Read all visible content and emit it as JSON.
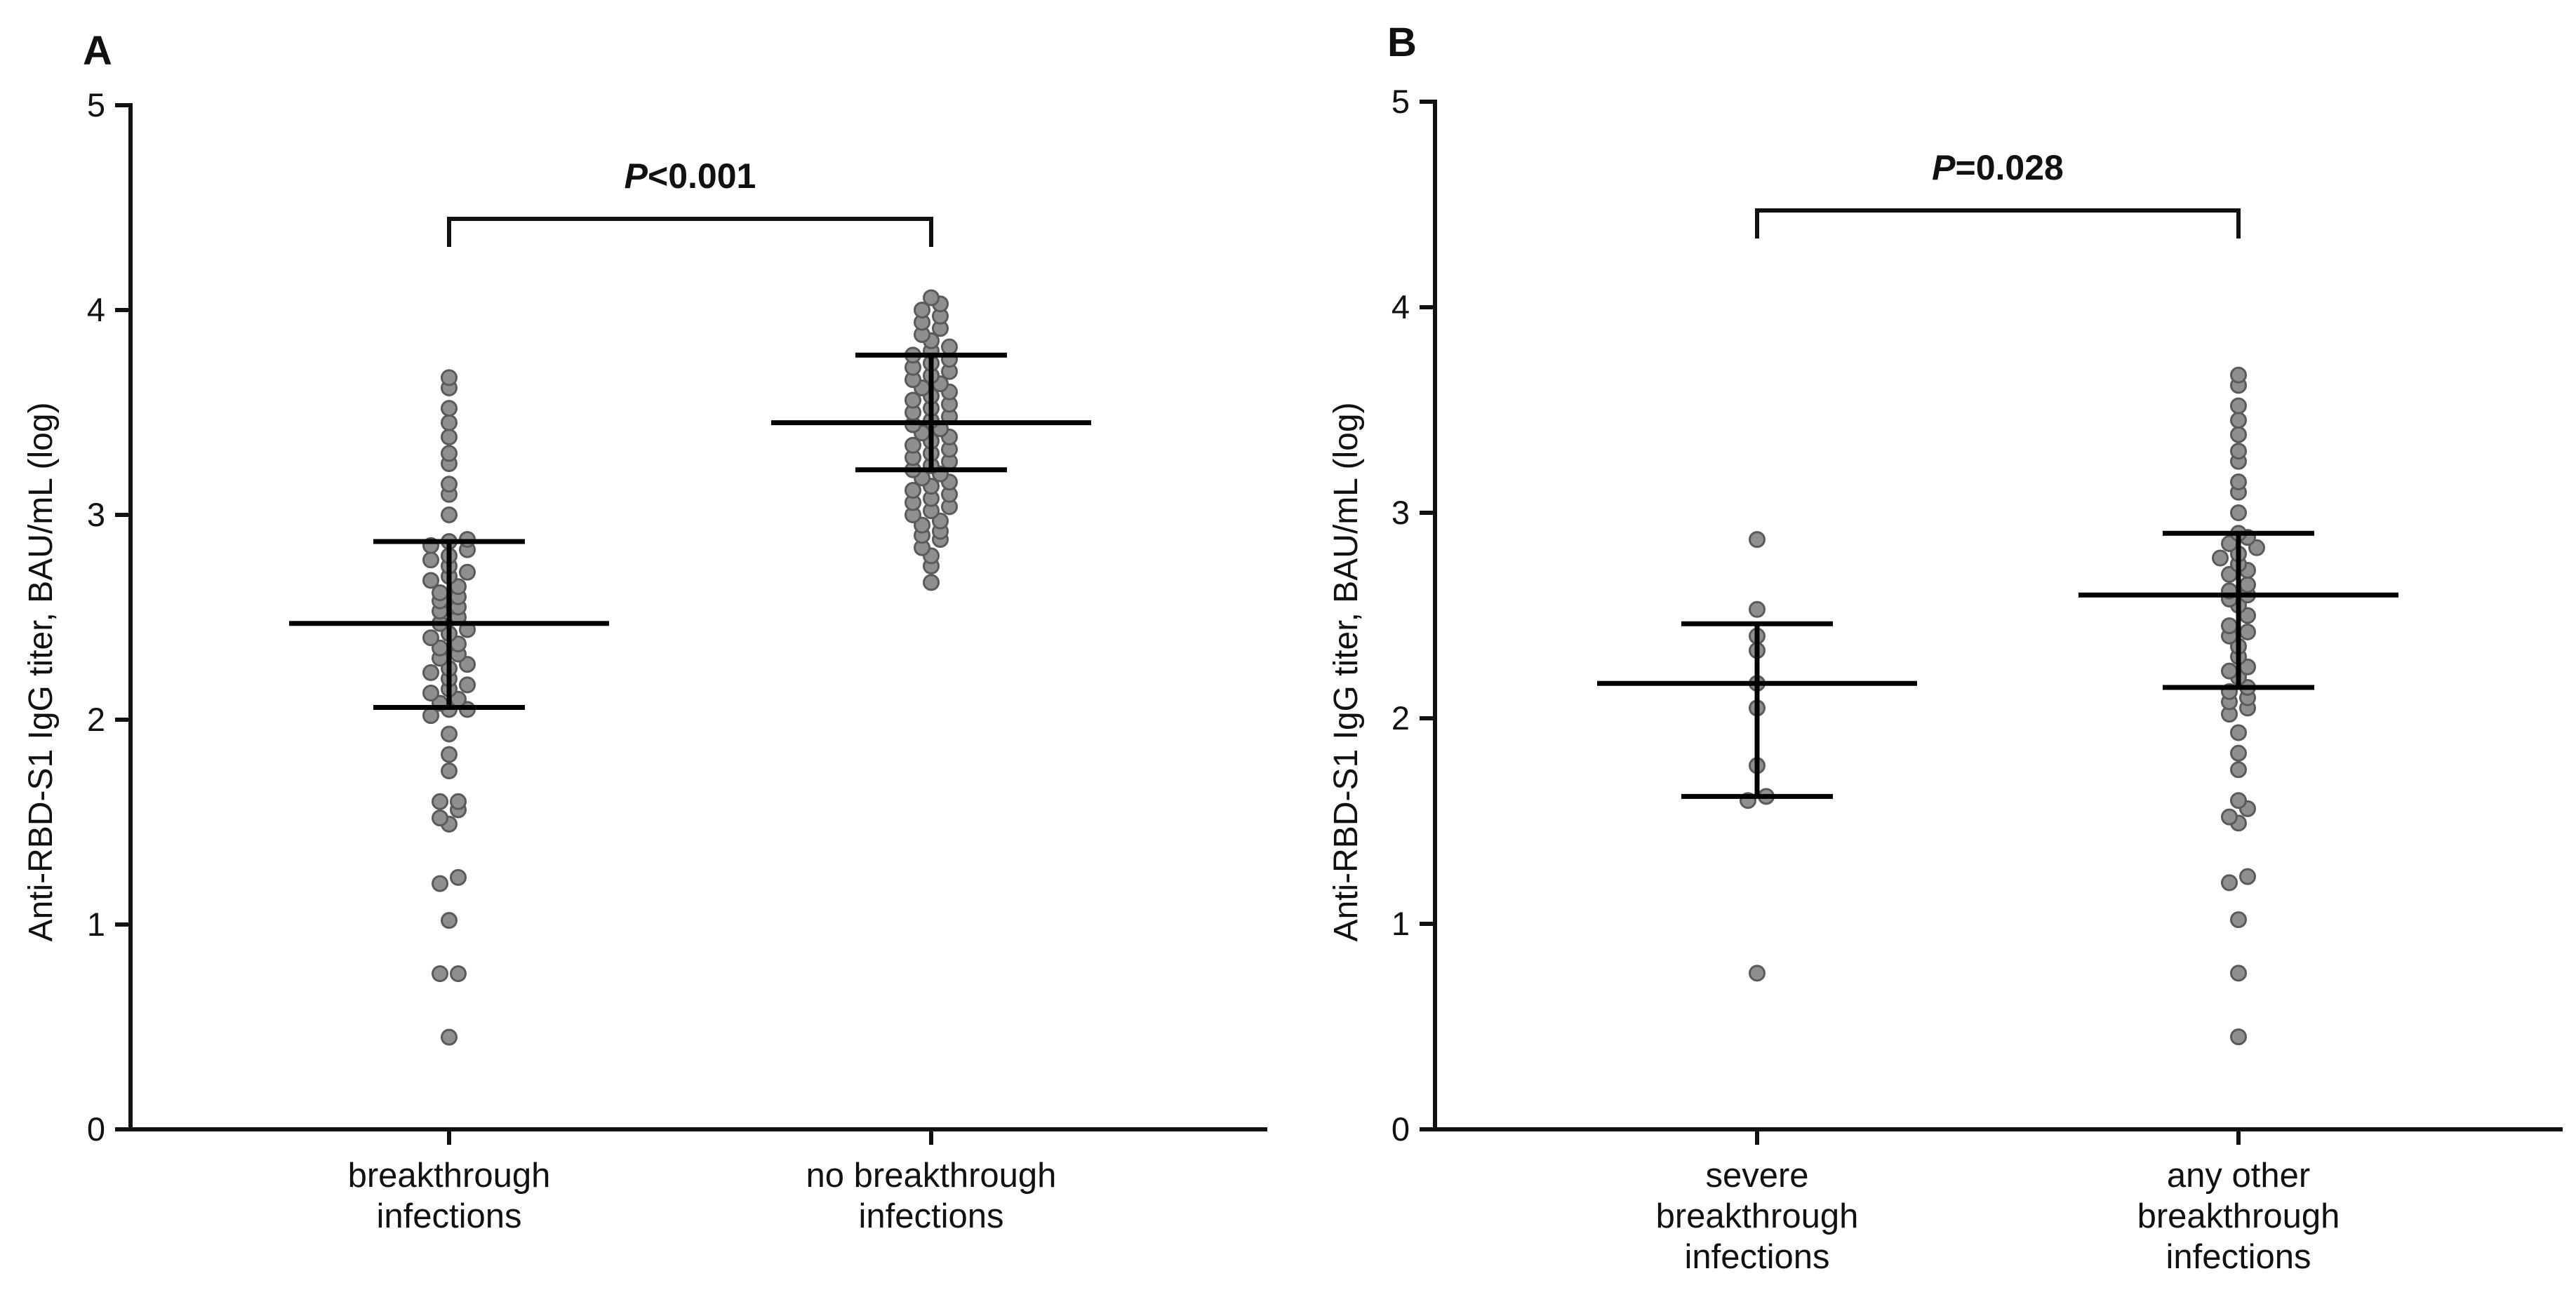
{
  "chart_data": [
    {
      "panel": "A",
      "type": "scatter",
      "subtype": "dot-plot-median-iqr",
      "ylabel": "Anti-RBD-S1 IgG titer, BAU/mL (log)",
      "ylim": [
        0,
        5
      ],
      "yticks": [
        "0",
        "1",
        "2",
        "3",
        "4",
        "5"
      ],
      "categories": [
        {
          "lines": [
            "breakthrough",
            "infections"
          ]
        },
        {
          "lines": [
            "no breakthrough",
            "infections"
          ]
        }
      ],
      "annotation": {
        "label_p": "P",
        "label_rest": "<0.001"
      },
      "series": [
        {
          "name": "breakthrough infections",
          "median": 2.47,
          "q1": 2.06,
          "q3": 2.87,
          "values": [
            0.45,
            0.76,
            0.76,
            1.02,
            1.2,
            1.23,
            1.49,
            1.52,
            1.56,
            1.6,
            1.6,
            1.75,
            1.83,
            1.93,
            2.02,
            2.05,
            2.05,
            2.08,
            2.1,
            2.13,
            2.15,
            2.17,
            2.2,
            2.23,
            2.25,
            2.27,
            2.3,
            2.32,
            2.35,
            2.37,
            2.4,
            2.42,
            2.44,
            2.47,
            2.5,
            2.53,
            2.55,
            2.58,
            2.6,
            2.62,
            2.65,
            2.68,
            2.7,
            2.72,
            2.75,
            2.78,
            2.8,
            2.83,
            2.85,
            2.87,
            2.88,
            3.0,
            3.1,
            3.15,
            3.25,
            3.3,
            3.38,
            3.45,
            3.52,
            3.62,
            3.67
          ]
        },
        {
          "name": "no breakthrough infections",
          "median": 3.45,
          "q1": 3.22,
          "q3": 3.78,
          "values": [
            2.67,
            2.75,
            2.8,
            2.84,
            2.88,
            2.9,
            2.92,
            2.95,
            2.97,
            3.0,
            3.02,
            3.04,
            3.06,
            3.08,
            3.1,
            3.12,
            3.14,
            3.16,
            3.18,
            3.2,
            3.22,
            3.24,
            3.26,
            3.28,
            3.3,
            3.32,
            3.34,
            3.36,
            3.38,
            3.4,
            3.42,
            3.44,
            3.46,
            3.48,
            3.5,
            3.52,
            3.54,
            3.56,
            3.58,
            3.6,
            3.62,
            3.64,
            3.66,
            3.68,
            3.7,
            3.72,
            3.74,
            3.76,
            3.78,
            3.8,
            3.82,
            3.85,
            3.88,
            3.91,
            3.94,
            3.97,
            4.0,
            4.03,
            4.06
          ]
        }
      ]
    },
    {
      "panel": "B",
      "type": "scatter",
      "subtype": "dot-plot-median-iqr",
      "ylabel": "Anti-RBD-S1 IgG titer, BAU/mL (log)",
      "ylim": [
        0,
        5
      ],
      "yticks": [
        "0",
        "1",
        "2",
        "3",
        "4",
        "5"
      ],
      "categories": [
        {
          "lines": [
            "severe",
            "breakthrough",
            "infections"
          ]
        },
        {
          "lines": [
            "any other",
            "breakthrough",
            "infections"
          ]
        }
      ],
      "annotation": {
        "label_p": "P",
        "label_rest": "=0.028"
      },
      "series": [
        {
          "name": "severe breakthrough infections",
          "median": 2.17,
          "q1": 1.62,
          "q3": 2.46,
          "values": [
            0.76,
            1.6,
            1.62,
            1.77,
            2.05,
            2.17,
            2.33,
            2.4,
            2.53,
            2.87
          ]
        },
        {
          "name": "any other breakthrough infections",
          "median": 2.6,
          "q1": 2.15,
          "q3": 2.9,
          "values": [
            0.45,
            0.76,
            1.02,
            1.2,
            1.23,
            1.49,
            1.52,
            1.56,
            1.6,
            1.75,
            1.83,
            1.93,
            2.02,
            2.05,
            2.08,
            2.1,
            2.13,
            2.15,
            2.2,
            2.23,
            2.25,
            2.3,
            2.35,
            2.4,
            2.42,
            2.45,
            2.5,
            2.55,
            2.58,
            2.6,
            2.62,
            2.65,
            2.7,
            2.72,
            2.75,
            2.78,
            2.8,
            2.83,
            2.85,
            2.88,
            2.9,
            3.0,
            3.1,
            3.15,
            3.25,
            3.3,
            3.38,
            3.45,
            3.52,
            3.62,
            3.67
          ]
        }
      ]
    }
  ]
}
